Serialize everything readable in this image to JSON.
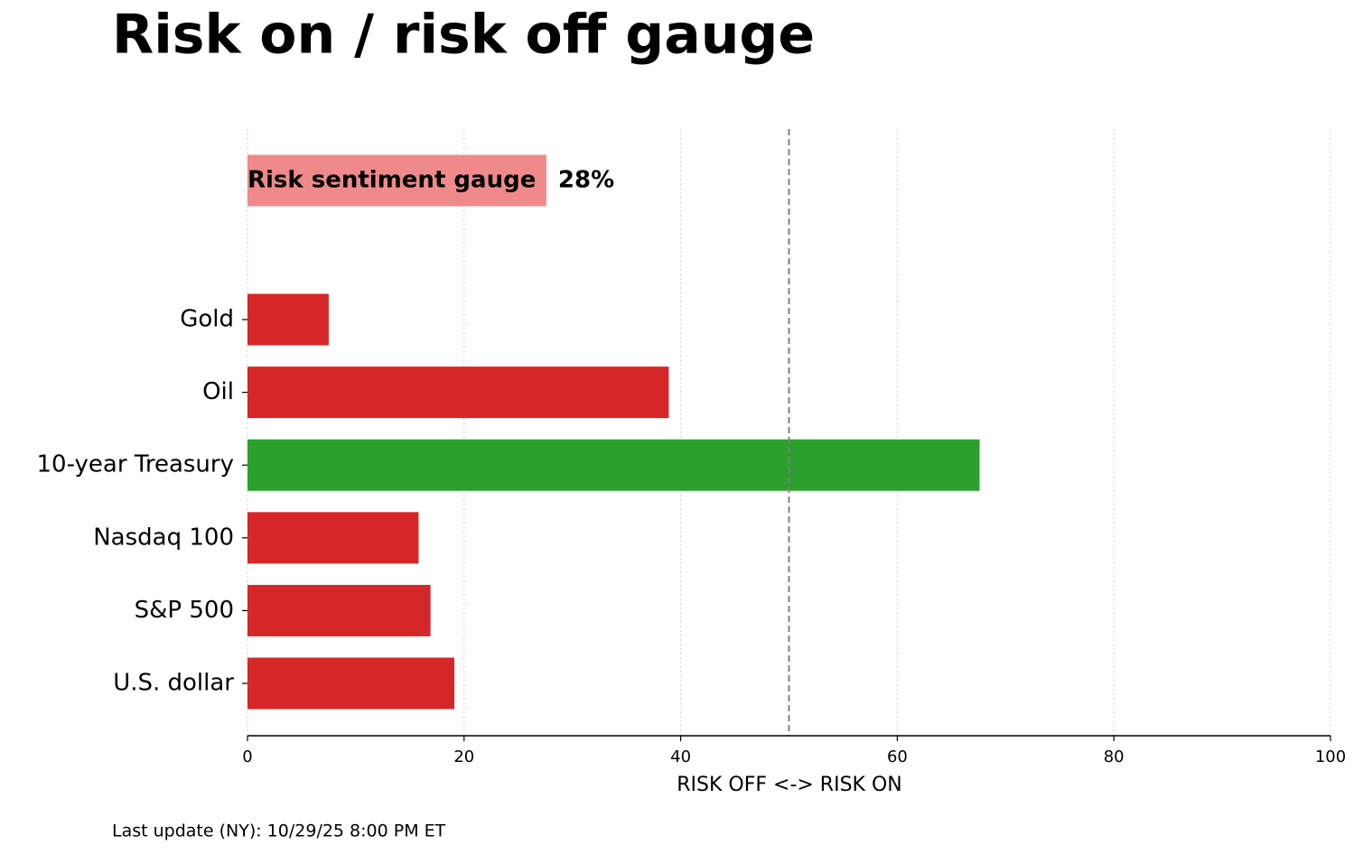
{
  "chart_data": {
    "type": "bar",
    "orientation": "horizontal",
    "title": "Risk on / risk off gauge",
    "gauge": {
      "label": "Risk sentiment gauge",
      "value": 27.6,
      "value_label": "28%",
      "color": "#f08a8a"
    },
    "categories": [
      "Gold",
      "Oil",
      "10-year Treasury",
      "Nasdaq 100",
      "S&P 500",
      "U.S. dollar"
    ],
    "values": [
      7.5,
      38.9,
      67.6,
      15.8,
      16.9,
      19.1
    ],
    "colors": [
      "#d62728",
      "#d62728",
      "#2ca02c",
      "#d62728",
      "#d62728",
      "#d62728"
    ],
    "xlim": [
      0,
      100
    ],
    "xticks": [
      0,
      20,
      40,
      60,
      80,
      100
    ],
    "xlabel": "RISK OFF <-> RISK ON",
    "reference_line": 50,
    "grid": true
  },
  "footer": "Last update (NY): 10/29/25 8:00 PM ET"
}
